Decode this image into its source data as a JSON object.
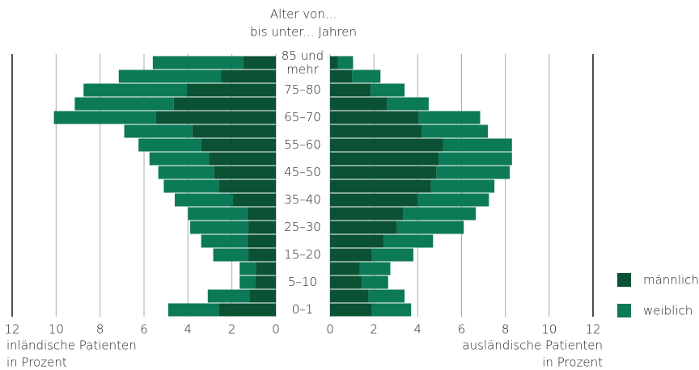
{
  "chart_data": {
    "type": "pyramid",
    "category_title": [
      "Alter von...",
      "bis unter... Jahren"
    ],
    "categories": [
      "0–1",
      null,
      "5–10",
      null,
      "15–20",
      null,
      "25–30",
      null,
      "35–40",
      null,
      "45–50",
      null,
      "55–60",
      null,
      "65–70",
      null,
      "75–80",
      null,
      "85 und mehr"
    ],
    "left": {
      "xlabel": [
        "inländische Patienten",
        "in Prozent"
      ],
      "xlim": [
        0,
        12
      ],
      "xticks": [
        0,
        2,
        4,
        6,
        8,
        10,
        12
      ]
    },
    "right": {
      "xlabel": [
        "ausländische Patienten",
        "in Prozent"
      ],
      "xlim": [
        0,
        12
      ],
      "xticks": [
        0,
        2,
        4,
        6,
        8,
        10,
        12
      ]
    },
    "grid": true,
    "series": [
      {
        "name": "männlich",
        "color": "#0b5234",
        "left_values": [
          2.6,
          1.2,
          0.95,
          0.9,
          1.25,
          1.3,
          1.25,
          1.3,
          1.95,
          2.6,
          2.8,
          3.05,
          3.4,
          3.8,
          5.45,
          4.65,
          4.05,
          2.5,
          1.5
        ],
        "right_values": [
          1.9,
          1.75,
          1.45,
          1.35,
          1.9,
          2.45,
          3.05,
          3.35,
          4.0,
          4.6,
          4.85,
          4.95,
          5.15,
          4.2,
          4.05,
          2.6,
          1.85,
          1.0,
          0.35
        ]
      },
      {
        "name": "weiblich",
        "color": "#0c7a56",
        "left_values": [
          2.3,
          1.9,
          0.7,
          0.75,
          1.6,
          2.1,
          2.65,
          2.7,
          2.65,
          2.5,
          2.55,
          2.7,
          2.85,
          3.1,
          4.65,
          4.5,
          4.7,
          4.65,
          4.1
        ],
        "right_values": [
          1.8,
          1.65,
          1.2,
          1.4,
          1.9,
          2.25,
          3.05,
          3.3,
          3.25,
          2.9,
          3.35,
          3.35,
          3.15,
          3.0,
          2.8,
          1.9,
          1.55,
          1.3,
          0.7
        ]
      }
    ]
  }
}
